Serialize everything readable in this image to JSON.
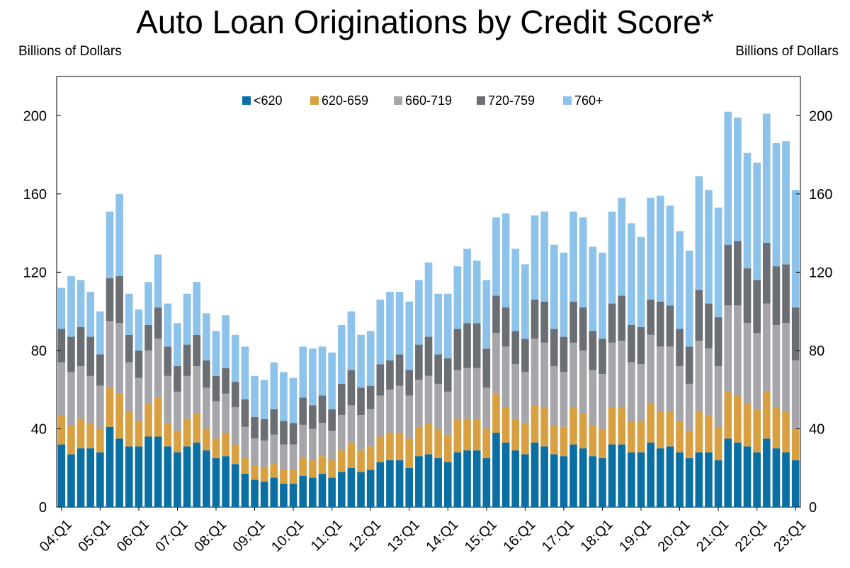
{
  "header": {
    "title": "Auto Loan Originations by Credit Score*",
    "left_unit": "Billions of Dollars",
    "right_unit": "Billions of Dollars"
  },
  "chart_data": {
    "type": "bar",
    "stacked": true,
    "title": "Auto Loan Originations by Credit Score*",
    "ylabel": "Billions of Dollars",
    "ylim": [
      0,
      220
    ],
    "yticks": [
      0,
      40,
      80,
      120,
      160,
      200
    ],
    "grid": false,
    "legend_position": "top-center",
    "x_tick_labels": [
      "04:Q1",
      "05:Q1",
      "06:Q1",
      "07:Q1",
      "08:Q1",
      "09:Q1",
      "10:Q1",
      "11:Q1",
      "12:Q1",
      "13:Q1",
      "14:Q1",
      "15:Q1",
      "16:Q1",
      "17:Q1",
      "18:Q1",
      "19:Q1",
      "20:Q1",
      "21:Q1",
      "22:Q1",
      "23:Q1"
    ],
    "categories": [
      "04:Q1",
      "04:Q2",
      "04:Q3",
      "04:Q4",
      "05:Q1",
      "05:Q2",
      "05:Q3",
      "05:Q4",
      "06:Q1",
      "06:Q2",
      "06:Q3",
      "06:Q4",
      "07:Q1",
      "07:Q2",
      "07:Q3",
      "07:Q4",
      "08:Q1",
      "08:Q2",
      "08:Q3",
      "08:Q4",
      "09:Q1",
      "09:Q2",
      "09:Q3",
      "09:Q4",
      "10:Q1",
      "10:Q2",
      "10:Q3",
      "10:Q4",
      "11:Q1",
      "11:Q2",
      "11:Q3",
      "11:Q4",
      "12:Q1",
      "12:Q2",
      "12:Q3",
      "12:Q4",
      "13:Q1",
      "13:Q2",
      "13:Q3",
      "13:Q4",
      "14:Q1",
      "14:Q2",
      "14:Q3",
      "14:Q4",
      "15:Q1",
      "15:Q2",
      "15:Q3",
      "15:Q4",
      "16:Q1",
      "16:Q2",
      "16:Q3",
      "16:Q4",
      "17:Q1",
      "17:Q2",
      "17:Q3",
      "17:Q4",
      "18:Q1",
      "18:Q2",
      "18:Q3",
      "18:Q4",
      "19:Q1",
      "19:Q2",
      "19:Q3",
      "19:Q4",
      "20:Q1",
      "20:Q2",
      "20:Q3",
      "20:Q4",
      "21:Q1",
      "21:Q2",
      "21:Q3",
      "21:Q4",
      "22:Q1",
      "22:Q2",
      "22:Q3",
      "22:Q4",
      "23:Q1"
    ],
    "series": [
      {
        "name": "<620",
        "color": "#0a6fa3",
        "values": [
          32,
          27,
          30,
          30,
          28,
          41,
          35,
          31,
          31,
          36,
          36,
          31,
          28,
          31,
          33,
          29,
          25,
          26,
          22,
          17,
          14,
          13,
          15,
          12,
          12,
          16,
          15,
          17,
          15,
          18,
          20,
          18,
          19,
          23,
          24,
          24,
          20,
          26,
          27,
          25,
          23,
          28,
          29,
          29,
          25,
          38,
          33,
          29,
          27,
          33,
          31,
          27,
          26,
          32,
          30,
          26,
          25,
          32,
          32,
          28,
          28,
          33,
          30,
          31,
          28,
          25,
          28,
          28,
          24,
          35,
          33,
          31,
          28,
          35,
          30,
          28,
          24
        ]
      },
      {
        "name": "620-659",
        "color": "#d9a042",
        "values": [
          15,
          15,
          15,
          13,
          12,
          20,
          23,
          18,
          13,
          17,
          20,
          12,
          11,
          14,
          15,
          11,
          10,
          12,
          10,
          8,
          7,
          7,
          7,
          7,
          7,
          9,
          9,
          9,
          9,
          11,
          13,
          11,
          12,
          13,
          14,
          14,
          15,
          15,
          16,
          15,
          14,
          17,
          16,
          16,
          15,
          20,
          18,
          16,
          16,
          19,
          20,
          15,
          15,
          19,
          18,
          16,
          15,
          19,
          19,
          16,
          16,
          20,
          19,
          18,
          16,
          14,
          21,
          19,
          17,
          24,
          24,
          22,
          22,
          24,
          21,
          21,
          16
        ]
      },
      {
        "name": "660-719",
        "color": "#a6a6aa",
        "values": [
          27,
          27,
          27,
          24,
          22,
          34,
          36,
          25,
          22,
          27,
          30,
          24,
          20,
          22,
          24,
          21,
          19,
          20,
          19,
          16,
          14,
          14,
          15,
          13,
          13,
          17,
          16,
          17,
          15,
          18,
          19,
          18,
          19,
          21,
          22,
          24,
          22,
          24,
          24,
          23,
          22,
          25,
          26,
          26,
          21,
          31,
          31,
          28,
          26,
          34,
          33,
          30,
          28,
          33,
          32,
          28,
          28,
          33,
          34,
          30,
          29,
          35,
          33,
          33,
          28,
          24,
          36,
          34,
          31,
          44,
          46,
          41,
          39,
          45,
          42,
          45,
          35
        ]
      },
      {
        "name": "720-759",
        "color": "#6b6e73",
        "values": [
          17,
          18,
          20,
          20,
          16,
          22,
          24,
          14,
          14,
          13,
          16,
          15,
          13,
          16,
          16,
          14,
          13,
          13,
          13,
          14,
          11,
          11,
          13,
          12,
          11,
          14,
          12,
          14,
          11,
          16,
          18,
          14,
          12,
          16,
          15,
          16,
          13,
          18,
          20,
          15,
          17,
          21,
          23,
          23,
          20,
          19,
          20,
          17,
          17,
          20,
          21,
          19,
          18,
          21,
          22,
          20,
          18,
          20,
          23,
          19,
          19,
          18,
          23,
          21,
          19,
          19,
          26,
          23,
          25,
          31,
          33,
          28,
          27,
          31,
          30,
          30,
          27
        ]
      },
      {
        "name": "760+",
        "color": "#8dc3ea",
        "values": [
          21,
          31,
          24,
          23,
          22,
          34,
          42,
          21,
          21,
          22,
          27,
          22,
          22,
          26,
          27,
          24,
          23,
          27,
          24,
          27,
          21,
          20,
          24,
          25,
          23,
          26,
          29,
          25,
          29,
          30,
          30,
          27,
          28,
          33,
          35,
          32,
          35,
          33,
          38,
          31,
          33,
          32,
          38,
          32,
          35,
          40,
          48,
          42,
          38,
          43,
          46,
          43,
          43,
          46,
          46,
          43,
          44,
          47,
          50,
          52,
          46,
          52,
          54,
          51,
          50,
          49,
          58,
          58,
          56,
          68,
          63,
          59,
          60,
          66,
          63,
          63,
          60
        ]
      }
    ]
  }
}
